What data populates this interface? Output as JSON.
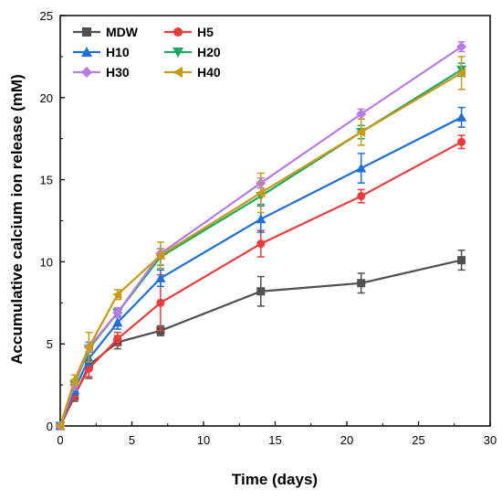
{
  "chart_data": {
    "type": "line",
    "title": "",
    "xlabel": "Time (days)",
    "ylabel": "Accumulative calcium ion release (mM)",
    "xlim": [
      0,
      30
    ],
    "ylim": [
      0,
      25
    ],
    "x_ticks": [
      0,
      5,
      10,
      15,
      20,
      25,
      30
    ],
    "y_ticks": [
      0,
      5,
      10,
      15,
      20,
      25
    ],
    "x_tick_labels": [
      "0",
      "5",
      "10",
      "15",
      "20",
      "25",
      "30"
    ],
    "y_tick_labels": [
      "0",
      "5",
      "10",
      "15",
      "20",
      "25"
    ],
    "grid": false,
    "legend_position": "top-left",
    "x": [
      0,
      1,
      2,
      4,
      7,
      14,
      21,
      28
    ],
    "series": [
      {
        "name": "MDW",
        "color": "#505050",
        "marker": "square",
        "values": [
          0,
          1.8,
          3.7,
          5.1,
          5.8,
          8.2,
          8.7,
          10.1
        ],
        "errors": [
          0,
          0.3,
          0.8,
          0.4,
          0.3,
          0.9,
          0.6,
          0.6
        ]
      },
      {
        "name": "H5",
        "color": "#ec3b3b",
        "marker": "circle",
        "values": [
          0,
          1.9,
          3.5,
          5.3,
          7.5,
          11.1,
          14.0,
          17.3
        ],
        "errors": [
          0,
          0.3,
          0.5,
          0.4,
          1.7,
          0.8,
          0.4,
          0.4
        ]
      },
      {
        "name": "H10",
        "color": "#1f6fd6",
        "marker": "triangle-up",
        "values": [
          0,
          2.2,
          4.1,
          6.3,
          9.0,
          12.6,
          15.7,
          18.8
        ],
        "errors": [
          0,
          0.3,
          0.4,
          0.4,
          0.5,
          0.8,
          0.9,
          0.6
        ]
      },
      {
        "name": "H20",
        "color": "#1fa862",
        "marker": "triangle-down",
        "values": [
          0,
          2.5,
          4.7,
          6.9,
          10.3,
          14.0,
          17.9,
          21.7
        ],
        "errors": [
          0,
          0.3,
          0.4,
          0.3,
          0.5,
          0.5,
          0.4,
          0.4
        ]
      },
      {
        "name": "H30",
        "color": "#b57be6",
        "marker": "diamond",
        "values": [
          0,
          2.5,
          4.8,
          6.9,
          10.5,
          14.8,
          19.0,
          23.1
        ],
        "errors": [
          0,
          0.3,
          0.3,
          0.3,
          0.3,
          0.3,
          0.3,
          0.3
        ]
      },
      {
        "name": "H40",
        "color": "#c79a1a",
        "marker": "triangle-left",
        "values": [
          0,
          2.8,
          4.8,
          8.0,
          10.4,
          14.2,
          17.9,
          21.5
        ],
        "errors": [
          0,
          0.3,
          0.9,
          0.3,
          0.8,
          1.2,
          0.8,
          1.0
        ]
      }
    ]
  }
}
